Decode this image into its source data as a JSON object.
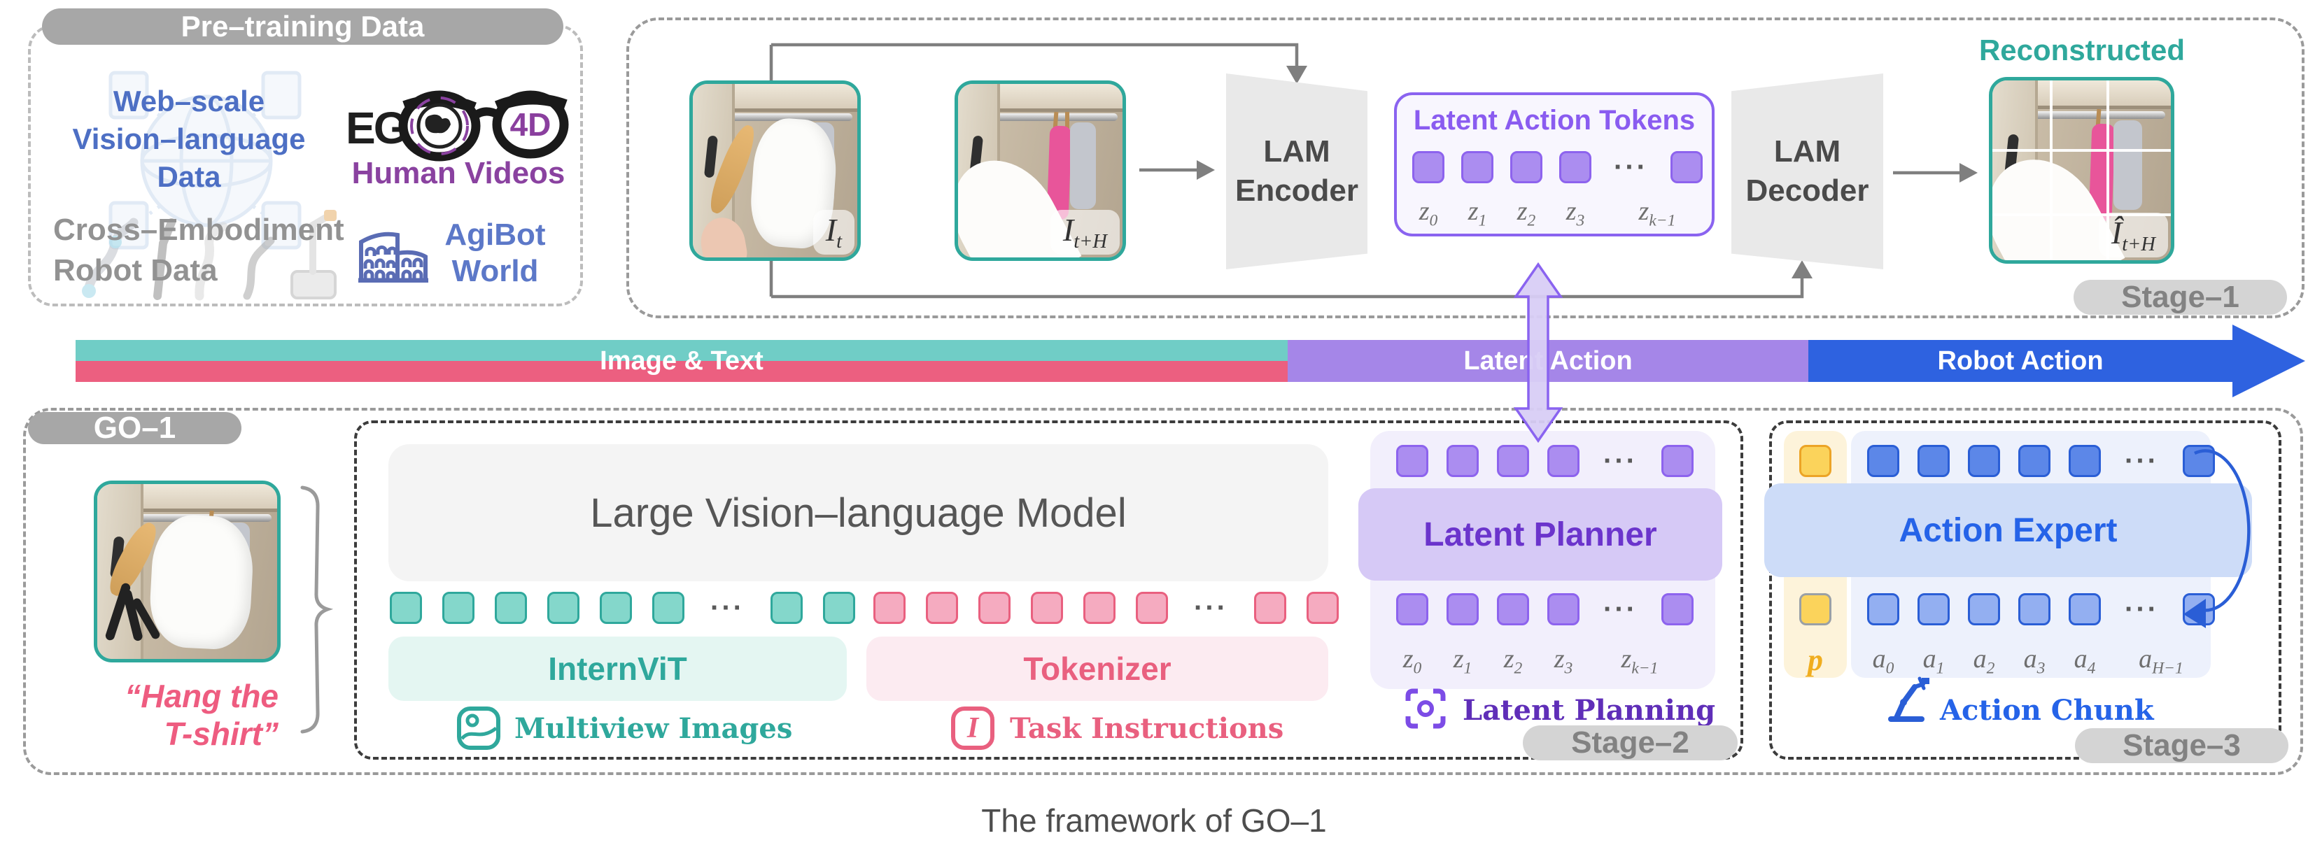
{
  "dots": "···",
  "pretraining": {
    "title": "Pre–training Data",
    "web_scale_lines": [
      "Web–scale",
      "Vision–language",
      "Data"
    ],
    "ego_text": "EG",
    "ego_4d": "4D",
    "human_videos": "Human Videos",
    "cross_embodiment_lines": [
      "Cross–Embodiment",
      "Robot Data"
    ],
    "agibot_lines": [
      "AgiBot",
      "World"
    ]
  },
  "stage1": {
    "pill": "Stage–1",
    "encoder_lines": [
      "LAM",
      "Encoder"
    ],
    "decoder_lines": [
      "LAM",
      "Decoder"
    ],
    "tokens_title": "Latent Action Tokens",
    "token_row": {
      "before": 4,
      "after": 1
    },
    "z_labels": [
      {
        "b": "z",
        "s": "0"
      },
      {
        "b": "z",
        "s": "1"
      },
      {
        "b": "z",
        "s": "2"
      },
      {
        "b": "z",
        "s": "3"
      },
      {
        "b": "z",
        "s": "k−1"
      }
    ],
    "input_label": {
      "b": "I",
      "s": "t"
    },
    "future_label": {
      "b": "I",
      "s": "t+H"
    },
    "reconstructed": "Reconstructed",
    "recon_label": {
      "b": "Î",
      "s": "t+H"
    }
  },
  "bar": {
    "image_text": "Image & Text",
    "latent_action": "Latent Action",
    "robot_action": "Robot Action"
  },
  "go1": {
    "pill": "GO–1",
    "instruction_lines": [
      "“Hang the",
      "T-shirt”"
    ]
  },
  "stage2": {
    "pill": "Stage–2",
    "vlm_title": "Large Vision–language Model",
    "internvit": "InternViT",
    "tokenizer": "Tokenizer",
    "multiview": "Multiview Images",
    "task_instructions": "Task Instructions",
    "instruction_icon_glyph": "I",
    "latent_planner": "Latent Planner",
    "latent_planning": "Latent Planning",
    "teal_row": {
      "before": 6,
      "after": 2
    },
    "pink_row": {
      "before": 6,
      "after": 2
    },
    "top_row": {
      "before": 4,
      "after": 1
    },
    "bottom_row": {
      "before": 4,
      "after": 1
    },
    "z_labels": [
      {
        "b": "z",
        "s": "0"
      },
      {
        "b": "z",
        "s": "1"
      },
      {
        "b": "z",
        "s": "2"
      },
      {
        "b": "z",
        "s": "3"
      },
      {
        "b": "z",
        "s": "k−1"
      }
    ]
  },
  "stage3": {
    "pill": "Stage–3",
    "action_expert": "Action Expert",
    "action_chunk": "Action Chunk",
    "p_label": "p",
    "top_row": {
      "before": 5,
      "after": 1
    },
    "bottom_row": {
      "before": 5,
      "after": 1
    },
    "a_labels": [
      {
        "b": "a",
        "s": "0"
      },
      {
        "b": "a",
        "s": "1"
      },
      {
        "b": "a",
        "s": "2"
      },
      {
        "b": "a",
        "s": "3"
      },
      {
        "b": "a",
        "s": "4"
      },
      {
        "b": "a",
        "s": "H−1"
      }
    ]
  },
  "caption": "The framework of GO–1",
  "colors": {
    "teal": "#2fa89c",
    "pink": "#e9607f",
    "purple": "#8a5cf0",
    "blue": "#2563e8",
    "bar_teal": "#70cdc6",
    "bar_pink": "#ec5f80",
    "bar_purple": "#a586e8",
    "bar_blue": "#2e62e0"
  }
}
